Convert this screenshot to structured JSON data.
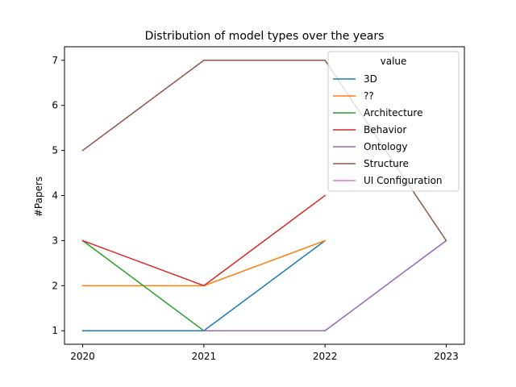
{
  "chart_data": {
    "type": "line",
    "title": "Distribution of model types over the years",
    "xlabel": "",
    "ylabel": "#Papers",
    "x": [
      2020,
      2021,
      2022,
      2023
    ],
    "xlim": [
      2019.85,
      2023.15
    ],
    "ylim": [
      0.7,
      7.3
    ],
    "yticks": [
      1,
      2,
      3,
      4,
      5,
      6,
      7
    ],
    "grid": false,
    "legend": {
      "title": "value",
      "placement": "top-right"
    },
    "series": [
      {
        "name": "3D",
        "color": "#1f77b4",
        "points": [
          [
            2020,
            1
          ],
          [
            2021,
            1
          ],
          [
            2022,
            3
          ]
        ]
      },
      {
        "name": "??",
        "color": "#ff7f0e",
        "points": [
          [
            2020,
            2
          ],
          [
            2021,
            2
          ],
          [
            2022,
            3
          ]
        ]
      },
      {
        "name": "Architecture",
        "color": "#2ca02c",
        "points": [
          [
            2020,
            3
          ],
          [
            2021,
            1
          ]
        ]
      },
      {
        "name": "Behavior",
        "color": "#d62728",
        "points": [
          [
            2020,
            3
          ],
          [
            2021,
            2
          ],
          [
            2022,
            4
          ]
        ]
      },
      {
        "name": "Ontology",
        "color": "#9467bd",
        "points": [
          [
            2021,
            1
          ],
          [
            2022,
            1
          ],
          [
            2023,
            3
          ]
        ]
      },
      {
        "name": "Structure",
        "color": "#8c564b",
        "points": [
          [
            2020,
            5
          ],
          [
            2021,
            7
          ],
          [
            2022,
            7
          ],
          [
            2023,
            3
          ]
        ]
      },
      {
        "name": "UI Configuration",
        "color": "#e377c2",
        "points": []
      }
    ]
  }
}
